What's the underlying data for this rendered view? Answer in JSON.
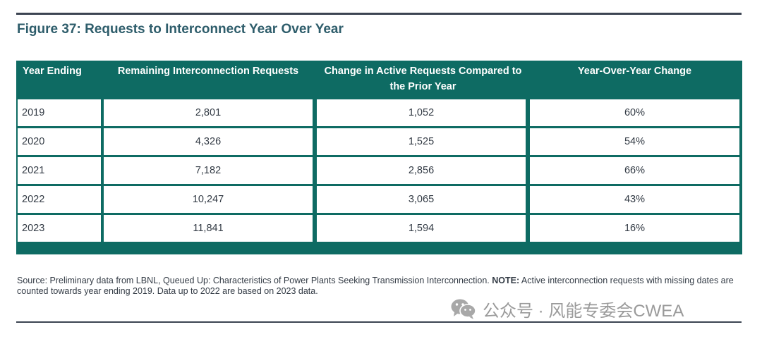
{
  "figure": {
    "title": "Figure 37: Requests to Interconnect Year Over Year"
  },
  "table": {
    "headers": [
      "Year Ending",
      "Remaining Interconnection Requests",
      "Change in Active Requests Compared to the Prior Year",
      "Year-Over-Year Change"
    ],
    "rows": [
      [
        "2019",
        "2,801",
        "1,052",
        "60%"
      ],
      [
        "2020",
        "4,326",
        "1,525",
        "54%"
      ],
      [
        "2021",
        "7,182",
        "2,856",
        "66%"
      ],
      [
        "2022",
        "10,247",
        "3,065",
        "43%"
      ],
      [
        "2023",
        "11,841",
        "1,594",
        "16%"
      ]
    ]
  },
  "source": {
    "prefix": "Source: Preliminary data from LBNL, Queued Up: Characteristics of Power Plants Seeking Transmission Interconnection. ",
    "note_label": "NOTE:",
    "note_text": " Active interconnection requests with missing dates are counted towards year ending 2019. Data up to 2022 are based on 2023 data."
  },
  "watermark": {
    "icon": "wechat-icon",
    "text": "公众号 · 风能专委会CWEA"
  },
  "colors": {
    "table_header": "#0e6b63",
    "title": "#2e5d6b",
    "rule": "#3c4452"
  }
}
